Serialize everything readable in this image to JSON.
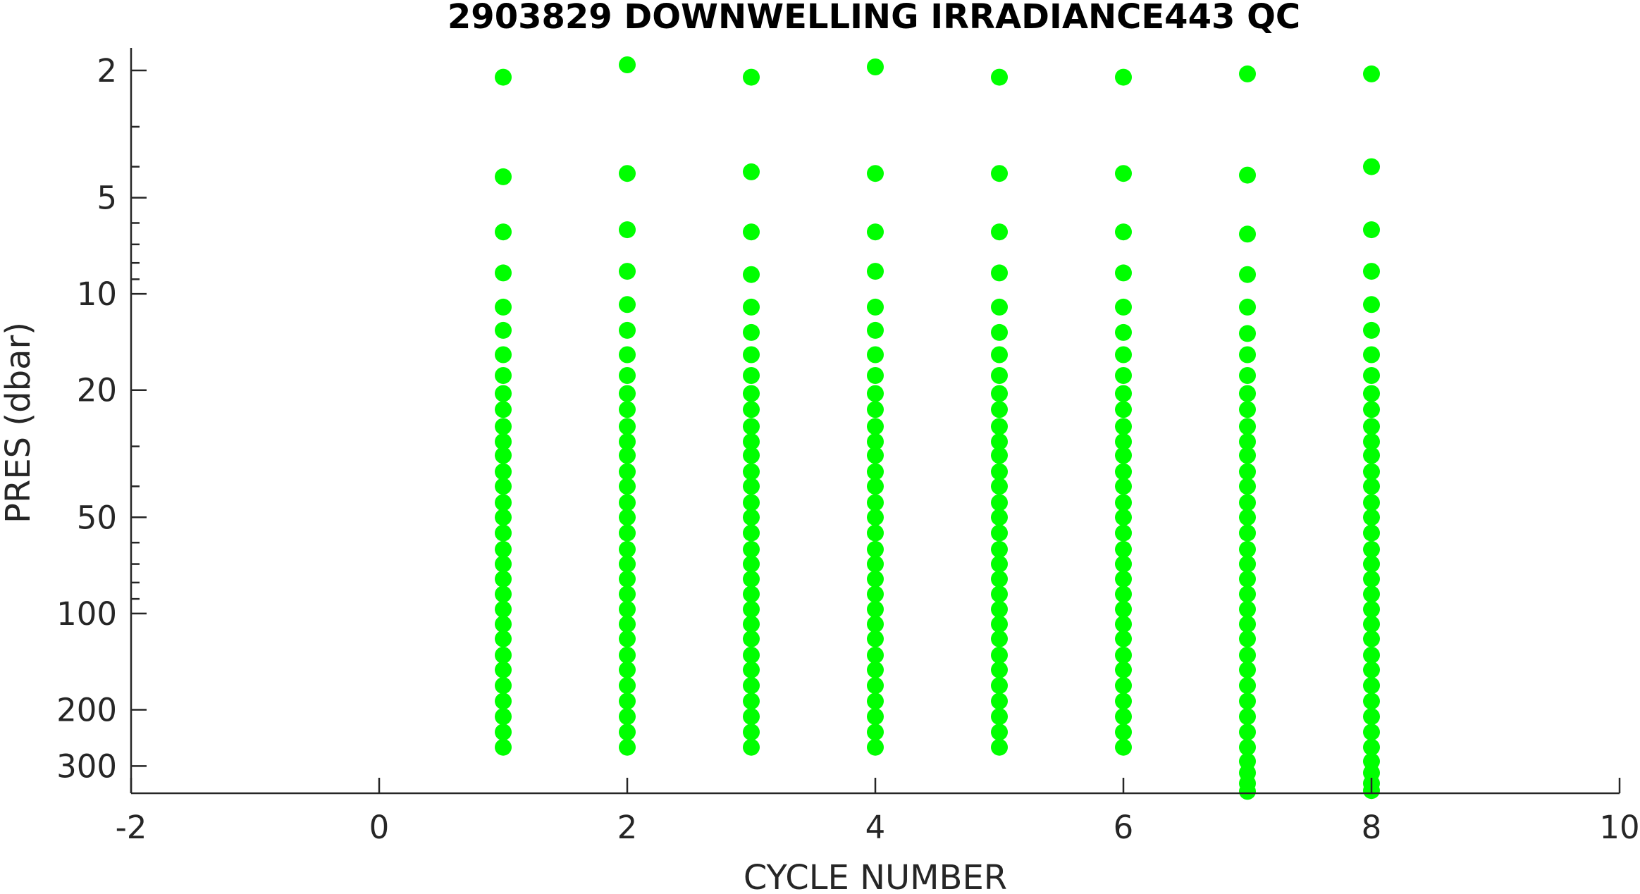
{
  "chart_data": {
    "type": "scatter",
    "title": "2903829  DOWNWELLING IRRADIANCE443 QC",
    "xlabel": "CYCLE NUMBER",
    "ylabel": "PRES (dbar)",
    "xlim": [
      -2,
      10
    ],
    "ylim": [
      1.7,
      365
    ],
    "y_scale": "log",
    "y_reversed": true,
    "grid": false,
    "x_ticks": [
      -2,
      0,
      2,
      4,
      6,
      8,
      10
    ],
    "y_ticks": [
      2,
      5,
      10,
      20,
      50,
      100,
      200,
      300
    ],
    "marker_color": "#00ff00",
    "series": [
      {
        "values": [
          {
            "x": 1,
            "pressures": [
              2.1,
              4.3,
              6.4,
              8.6,
              11,
              13,
              15.5,
              18,
              20.5,
              23,
              26,
              29,
              32,
              36,
              40,
              45,
              50,
              56,
              63,
              70,
              78,
              87,
              97,
              108,
              120,
              135,
              150,
              168,
              188,
              210,
              235,
              262
            ]
          },
          {
            "x": 2,
            "pressures": [
              1.92,
              4.2,
              6.3,
              8.5,
              10.8,
              13,
              15.5,
              18,
              20.5,
              23,
              26,
              29,
              32,
              36,
              40,
              45,
              50,
              56,
              63,
              70,
              78,
              87,
              97,
              108,
              120,
              135,
              150,
              168,
              188,
              210,
              235,
              262
            ]
          },
          {
            "x": 3,
            "pressures": [
              2.1,
              4.15,
              6.4,
              8.7,
              11,
              13.2,
              15.5,
              18,
              20.5,
              23,
              26,
              29,
              32,
              36,
              40,
              45,
              50,
              56,
              63,
              70,
              78,
              87,
              97,
              108,
              120,
              135,
              150,
              168,
              188,
              210,
              235,
              262
            ]
          },
          {
            "x": 4,
            "pressures": [
              1.95,
              4.2,
              6.4,
              8.5,
              11,
              13,
              15.5,
              18,
              20.5,
              23,
              26,
              29,
              32,
              36,
              40,
              45,
              50,
              56,
              63,
              70,
              78,
              87,
              97,
              108,
              120,
              135,
              150,
              168,
              188,
              210,
              235,
              262
            ]
          },
          {
            "x": 5,
            "pressures": [
              2.1,
              4.2,
              6.4,
              8.6,
              11,
              13.2,
              15.5,
              18,
              20.5,
              23,
              26,
              29,
              32,
              36,
              40,
              45,
              50,
              56,
              63,
              70,
              78,
              87,
              97,
              108,
              120,
              135,
              150,
              168,
              188,
              210,
              235,
              262
            ]
          },
          {
            "x": 6,
            "pressures": [
              2.1,
              4.2,
              6.4,
              8.6,
              11,
              13.2,
              15.5,
              18,
              20.5,
              23,
              26,
              29,
              32,
              36,
              40,
              45,
              50,
              56,
              63,
              70,
              78,
              87,
              97,
              108,
              120,
              135,
              150,
              168,
              188,
              210,
              235,
              262
            ]
          },
          {
            "x": 7,
            "pressures": [
              2.05,
              4.25,
              6.5,
              8.7,
              11,
              13.3,
              15.5,
              18,
              20.5,
              23,
              26,
              29,
              32,
              36,
              40,
              45,
              50,
              56,
              63,
              70,
              78,
              87,
              97,
              108,
              120,
              135,
              150,
              168,
              188,
              210,
              235,
              262,
              290,
              315,
              340,
              360
            ]
          },
          {
            "x": 8,
            "pressures": [
              2.05,
              4.0,
              6.3,
              8.5,
              10.8,
              13,
              15.5,
              18,
              20.5,
              23,
              26,
              29,
              32,
              36,
              40,
              45,
              50,
              56,
              63,
              70,
              78,
              87,
              97,
              108,
              120,
              135,
              150,
              168,
              188,
              210,
              235,
              262,
              290,
              315,
              340,
              358
            ]
          }
        ]
      }
    ]
  }
}
